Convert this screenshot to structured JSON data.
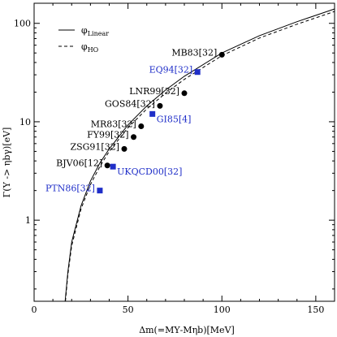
{
  "chart_data": {
    "type": "scatter",
    "xlabel": "Δm(=MΥ-Mηb)[MeV]",
    "ylabel": "Γ(Υ -> ηbγ)[eV]",
    "xlim": [
      0,
      160
    ],
    "ylim": [
      0.15,
      160
    ],
    "y_scale": "log",
    "x_ticks": [
      "0",
      "50",
      "100",
      "150"
    ],
    "y_ticks": [
      "1",
      "10",
      "100"
    ],
    "legend": {
      "placement": "top-left",
      "entries": [
        {
          "label": "φLinear",
          "style": "solid"
        },
        {
          "label": "φHO",
          "style": "dashed"
        }
      ]
    },
    "curves": [
      {
        "name": "φLinear",
        "style": "solid",
        "points": [
          [
            16.5,
            0.15
          ],
          [
            18,
            0.3
          ],
          [
            20,
            0.6
          ],
          [
            25,
            1.4
          ],
          [
            30,
            2.5
          ],
          [
            35,
            3.8
          ],
          [
            40,
            5.3
          ],
          [
            50,
            9.3
          ],
          [
            60,
            14.5
          ],
          [
            70,
            21
          ],
          [
            80,
            29
          ],
          [
            100,
            50
          ],
          [
            120,
            75
          ],
          [
            140,
            104
          ],
          [
            160,
            140
          ]
        ]
      },
      {
        "name": "φHO",
        "style": "dashed",
        "points": [
          [
            16.7,
            0.15
          ],
          [
            18,
            0.28
          ],
          [
            20,
            0.55
          ],
          [
            25,
            1.3
          ],
          [
            30,
            2.3
          ],
          [
            35,
            3.5
          ],
          [
            40,
            5.0
          ],
          [
            50,
            8.7
          ],
          [
            60,
            13.5
          ],
          [
            70,
            19.5
          ],
          [
            80,
            27
          ],
          [
            100,
            47
          ],
          [
            120,
            71
          ],
          [
            140,
            98
          ],
          [
            160,
            132
          ]
        ]
      }
    ],
    "points": [
      {
        "label": "MB83[32]",
        "x": 100,
        "y": 48,
        "color": "#000000",
        "marker": "circle"
      },
      {
        "label": "EQ94[32]",
        "x": 87,
        "y": 32,
        "color": "#1f2ec8",
        "marker": "square"
      },
      {
        "label": "LNR99[32]",
        "x": 80,
        "y": 19.5,
        "color": "#000000",
        "marker": "circle"
      },
      {
        "label": "GOS84[32]",
        "x": 67,
        "y": 14.5,
        "color": "#000000",
        "marker": "circle"
      },
      {
        "label": "GI85[4]",
        "x": 63,
        "y": 12,
        "color": "#1f2ec8",
        "marker": "square"
      },
      {
        "label": "MR83[32]",
        "x": 57,
        "y": 9,
        "color": "#000000",
        "marker": "circle"
      },
      {
        "label": "FY99[32]",
        "x": 53,
        "y": 7,
        "color": "#000000",
        "marker": "circle"
      },
      {
        "label": "ZSG91[32]",
        "x": 48,
        "y": 5.3,
        "color": "#000000",
        "marker": "circle"
      },
      {
        "label": "BJV06[12]",
        "x": 39,
        "y": 3.6,
        "color": "#000000",
        "marker": "circle"
      },
      {
        "label": "UKQCD00[32]",
        "x": 42,
        "y": 3.5,
        "color": "#1f2ec8",
        "marker": "square"
      },
      {
        "label": "PTN86[32]",
        "x": 35,
        "y": 2.0,
        "color": "#1f2ec8",
        "marker": "square"
      }
    ],
    "grid": false
  }
}
